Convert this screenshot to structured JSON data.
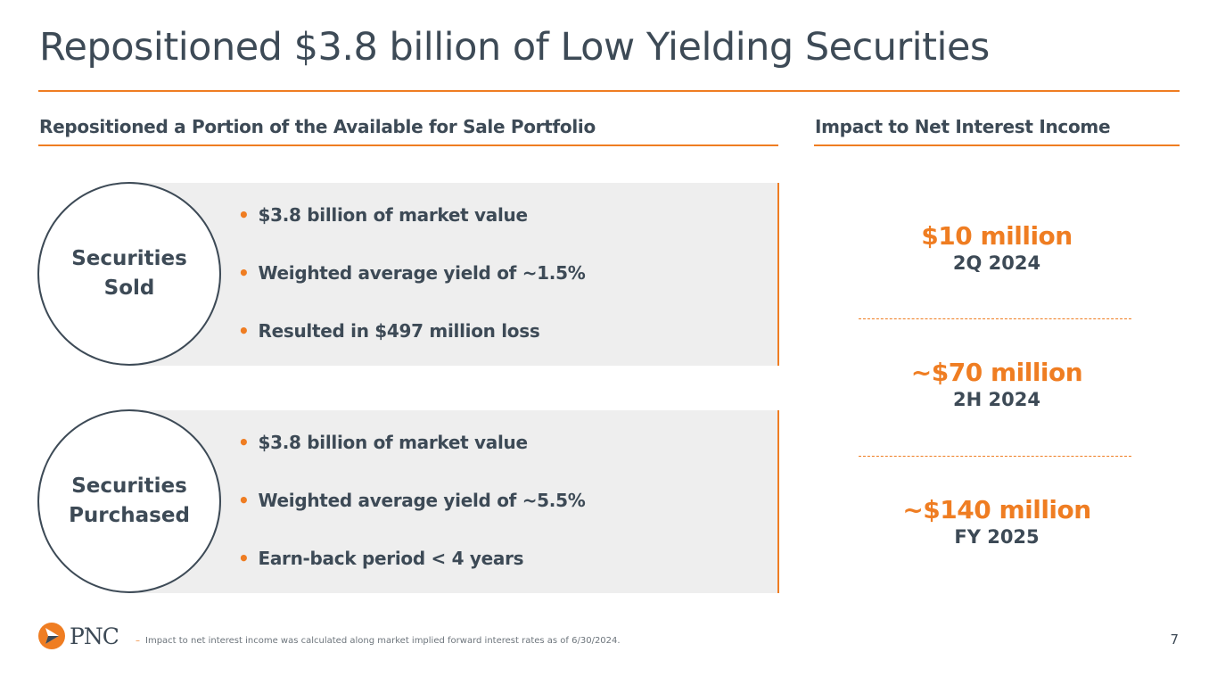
{
  "title": "Repositioned $3.8 billion of Low Yielding Securities",
  "left_section": {
    "heading": "Repositioned a Portion of the Available for Sale Portfolio",
    "sold": {
      "label": "Securities Sold",
      "bullets": [
        "$3.8 billion of market value",
        "Weighted average yield of ~1.5%",
        "Resulted in $497 million loss"
      ]
    },
    "purchased": {
      "label": "Securities Purchased",
      "bullets": [
        "$3.8 billion of market value",
        "Weighted average yield of ~5.5%",
        "Earn-back period < 4 years"
      ]
    }
  },
  "right_section": {
    "heading": "Impact to Net Interest Income",
    "items": [
      {
        "amount": "$10 million",
        "period": "2Q 2024"
      },
      {
        "amount": "~$70 million",
        "period": "2H 2024"
      },
      {
        "amount": "~$140 million",
        "period": "FY 2025"
      }
    ]
  },
  "footer": {
    "logo_text": "PNC",
    "footnote_marker": "–",
    "footnote": "Impact to net interest income was calculated along market implied forward interest rates as of 6/30/2024.",
    "page_number": "7"
  },
  "colors": {
    "accent": "#ef7d22",
    "text": "#3d4a56",
    "panel": "#eeeeee"
  },
  "icons": {
    "bullet": "•",
    "logo": "pnc-logo-icon"
  }
}
